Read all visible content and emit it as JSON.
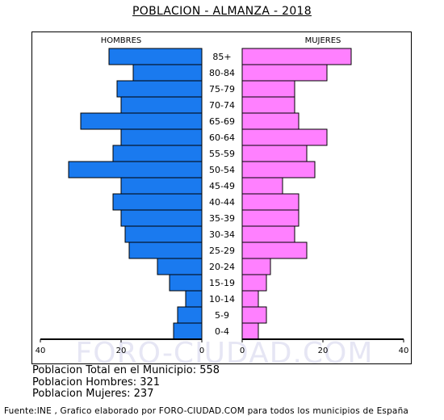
{
  "chart_data": {
    "type": "bar",
    "title": "POBLACION - ALMANZA - 2018",
    "left_label": "HOMBRES",
    "right_label": "MUJERES",
    "categories": [
      "85+",
      "80-84",
      "75-79",
      "70-74",
      "65-69",
      "60-64",
      "55-59",
      "50-54",
      "45-49",
      "40-44",
      "35-39",
      "30-34",
      "25-29",
      "20-24",
      "15-19",
      "10-14",
      "5-9",
      "0-4"
    ],
    "series": [
      {
        "name": "HOMBRES",
        "values": [
          23,
          17,
          21,
          20,
          30,
          20,
          22,
          33,
          20,
          22,
          20,
          19,
          18,
          11,
          8,
          4,
          6,
          7
        ],
        "color": "#1a7aef"
      },
      {
        "name": "MUJERES",
        "values": [
          27,
          21,
          13,
          13,
          14,
          21,
          16,
          18,
          10,
          14,
          14,
          13,
          16,
          7,
          6,
          4,
          6,
          4
        ],
        "color": "#ff80ff"
      }
    ],
    "x_ticks_left": [
      "40",
      "20",
      "0"
    ],
    "x_ticks_right": [
      "0",
      "20",
      "40"
    ],
    "xlim": [
      0,
      40
    ]
  },
  "watermark": "FORO-CIUDAD.COM",
  "stats": {
    "total": "Poblacion Total en el Municipio: 558",
    "hombres": "Poblacion Hombres: 321",
    "mujeres": "Poblacion Mujeres: 237"
  },
  "footer": "Fuente:INE , Grafico elaborado por FORO-CIUDAD.COM para todos los municipios de España"
}
